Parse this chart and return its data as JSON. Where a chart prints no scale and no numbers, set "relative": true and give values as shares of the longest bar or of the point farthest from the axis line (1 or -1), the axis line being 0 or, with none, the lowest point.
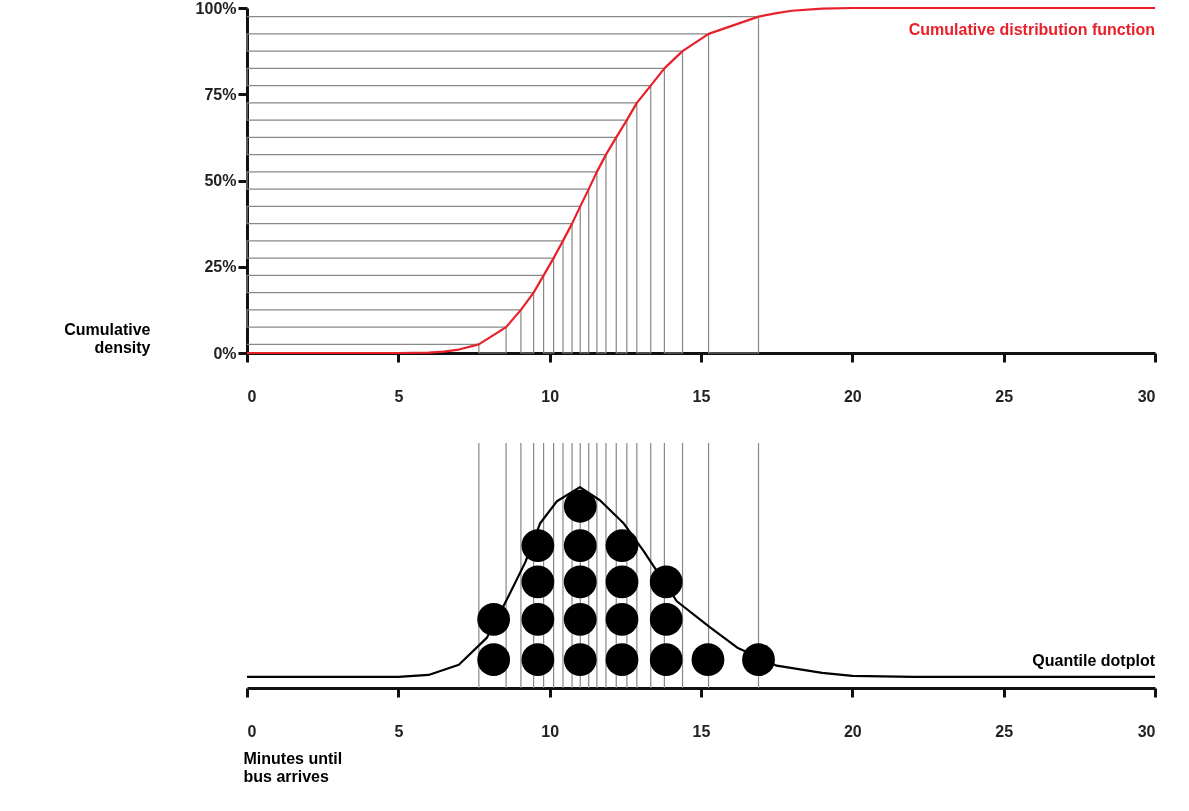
{
  "chart_data": [
    {
      "type": "line",
      "ylabel": "Cumulative density",
      "xlim": [
        0,
        30
      ],
      "xticks": [
        0,
        5,
        10,
        15,
        20,
        25,
        30
      ],
      "ylim": [
        0,
        100
      ],
      "yticks": [
        {
          "value": 0,
          "label": "0%"
        },
        {
          "value": 25,
          "label": "25%"
        },
        {
          "value": 50,
          "label": "50%"
        },
        {
          "value": 75,
          "label": "75%"
        },
        {
          "value": 100,
          "label": "100%"
        }
      ],
      "series": [
        {
          "color": "#888888",
          "x": [
            0,
            7.66,
            7.66,
            8.56,
            8.56,
            0,
            0,
            9.05,
            9.05,
            9.47,
            9.47,
            0,
            0,
            9.8,
            9.8,
            10.13,
            10.13,
            0,
            0,
            10.44,
            10.44,
            10.74,
            10.74,
            0,
            0,
            11.01,
            11.01,
            11.29,
            11.29,
            0,
            0,
            11.56,
            11.56,
            11.86,
            11.86,
            0,
            0,
            12.2,
            12.2,
            12.55,
            12.55,
            0,
            0,
            12.88,
            12.88,
            13.34,
            13.34,
            0,
            0,
            13.79,
            13.79,
            14.39,
            14.39,
            0,
            0,
            15.25,
            15.25,
            16.9,
            16.9,
            0
          ],
          "values": [
            2.5,
            2.5,
            0,
            0,
            7.5,
            7.5,
            12.5,
            12.5,
            0,
            0,
            17.5,
            17.5,
            22.5,
            22.5,
            0,
            0,
            27.5,
            27.5,
            32.5,
            32.5,
            0,
            0,
            37.5,
            37.5,
            42.5,
            42.5,
            0,
            0,
            47.5,
            47.5,
            52.5,
            52.5,
            0,
            0,
            57.5,
            57.5,
            62.5,
            62.5,
            0,
            0,
            67.5,
            67.5,
            72.5,
            72.5,
            0,
            0,
            77.5,
            77.5,
            82.5,
            82.5,
            0,
            0,
            87.5,
            87.5,
            92.5,
            92.5,
            0,
            0,
            97.5,
            97.5
          ]
        },
        {
          "name": "Cumulative distribution function",
          "color": "#e8202a",
          "x": [
            0,
            5,
            6,
            6.5,
            7,
            7.66,
            8.56,
            9.05,
            9.47,
            9.8,
            10.13,
            10.44,
            10.74,
            11.01,
            11.29,
            11.56,
            11.86,
            12.2,
            12.55,
            12.88,
            13.34,
            13.79,
            14.39,
            15.25,
            16.9,
            17.5,
            18,
            19,
            20,
            25,
            30
          ],
          "values": [
            0,
            0,
            0.1,
            0.4,
            1.0,
            2.5,
            7.5,
            12.5,
            17.5,
            22.5,
            27.5,
            32.5,
            37.5,
            42.5,
            47.5,
            52.5,
            57.5,
            62.5,
            67.5,
            72.5,
            77.5,
            82.5,
            87.5,
            92.5,
            97.5,
            98.5,
            99.2,
            99.8,
            100,
            100,
            100
          ]
        }
      ]
    },
    {
      "type": "line",
      "relative": true,
      "xlabel": "Minutes until bus arrives",
      "xlim": [
        0,
        30
      ],
      "xticks": [
        0,
        5,
        10,
        15,
        20,
        25,
        30
      ],
      "tick_labels": "x",
      "ref_lines": [
        {
          "axis": "x",
          "value": 7.66,
          "color": "#888888"
        },
        {
          "axis": "x",
          "value": 8.56,
          "color": "#888888"
        },
        {
          "axis": "x",
          "value": 9.05,
          "color": "#888888"
        },
        {
          "axis": "x",
          "value": 9.47,
          "color": "#888888"
        },
        {
          "axis": "x",
          "value": 9.8,
          "color": "#888888"
        },
        {
          "axis": "x",
          "value": 10.13,
          "color": "#888888"
        },
        {
          "axis": "x",
          "value": 10.44,
          "color": "#888888"
        },
        {
          "axis": "x",
          "value": 10.74,
          "color": "#888888"
        },
        {
          "axis": "x",
          "value": 11.01,
          "color": "#888888"
        },
        {
          "axis": "x",
          "value": 11.29,
          "color": "#888888"
        },
        {
          "axis": "x",
          "value": 11.56,
          "color": "#888888"
        },
        {
          "axis": "x",
          "value": 11.86,
          "color": "#888888"
        },
        {
          "axis": "x",
          "value": 12.2,
          "color": "#888888"
        },
        {
          "axis": "x",
          "value": 12.55,
          "color": "#888888"
        },
        {
          "axis": "x",
          "value": 12.88,
          "color": "#888888"
        },
        {
          "axis": "x",
          "value": 13.34,
          "color": "#888888"
        },
        {
          "axis": "x",
          "value": 13.79,
          "color": "#888888"
        },
        {
          "axis": "x",
          "value": 14.39,
          "color": "#888888"
        },
        {
          "axis": "x",
          "value": 15.25,
          "color": "#888888"
        },
        {
          "axis": "x",
          "value": 16.9,
          "color": "#888888"
        }
      ],
      "series": [
        {
          "name": "Quantile dotplot",
          "color": "#000000",
          "x": [
            0,
            5,
            6,
            7,
            7.93,
            8.54,
            9.2,
            9.68,
            10.24,
            11.0,
            11.66,
            12.45,
            13.1,
            14.2,
            15.3,
            16.2,
            17.5,
            19,
            20,
            22,
            30
          ],
          "values": [
            0.055,
            0.055,
            0.065,
            0.116,
            0.251,
            0.427,
            0.628,
            0.819,
            0.93,
            1.0,
            0.935,
            0.819,
            0.683,
            0.432,
            0.302,
            0.201,
            0.111,
            0.075,
            0.06,
            0.055,
            0.055
          ]
        },
        {
          "type": "scatter",
          "marker": "circle",
          "color": "#000000",
          "x": [
            8.15,
            8.15,
            9.61,
            9.61,
            9.61,
            9.61,
            11.01,
            11.01,
            11.01,
            11.01,
            11.01,
            12.39,
            12.39,
            12.39,
            12.39,
            13.85,
            13.85,
            13.85,
            15.23,
            16.9
          ],
          "values": [
            0.141,
            0.342,
            0.141,
            0.342,
            0.528,
            0.709,
            0.141,
            0.342,
            0.528,
            0.709,
            0.905,
            0.141,
            0.342,
            0.528,
            0.709,
            0.141,
            0.342,
            0.528,
            0.141,
            0.141
          ]
        }
      ]
    }
  ]
}
